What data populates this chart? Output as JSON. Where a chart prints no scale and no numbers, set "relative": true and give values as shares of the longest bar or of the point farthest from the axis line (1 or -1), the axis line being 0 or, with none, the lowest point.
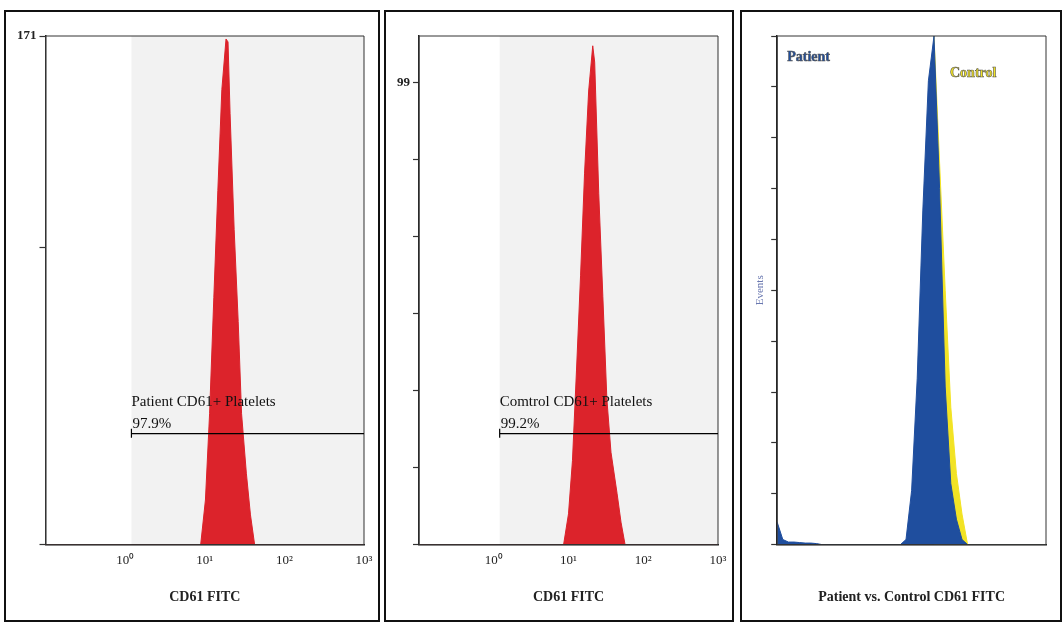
{
  "chart_data": [
    {
      "type": "area",
      "xlabel": "CD61 FITC",
      "log": "x",
      "xlim": [
        0.1,
        1000
      ],
      "xticks": [
        {
          "value": 1,
          "label": "10⁰"
        },
        {
          "value": 10,
          "label": "10¹"
        },
        {
          "value": 100,
          "label": "10²"
        },
        {
          "value": 1000,
          "label": "10³"
        }
      ],
      "ylim": [
        0,
        171
      ],
      "yticks": [
        {
          "value": 0,
          "label": null
        },
        {
          "value": 100,
          "label": null
        },
        171
      ],
      "x": [
        0.1,
        8.89,
        10.2,
        11.5,
        13.0,
        14.6,
        16.4,
        18.5,
        19.6,
        20.8,
        23.4,
        26.3,
        29.0,
        33.3,
        37.5,
        42.3,
        1000
      ],
      "series": [
        {
          "color": "#e8252e",
          "values": [
            0,
            0,
            15,
            44,
            83,
            119,
            153,
            170,
            169,
            145,
            106,
            75,
            44,
            24,
            10,
            0,
            0
          ]
        }
      ],
      "bands": [
        {
          "axis": "x",
          "from": 1.2,
          "to": 1000,
          "label": "Patient CD61+ Platelets",
          "color": "#000000"
        }
      ],
      "annotations": [
        "97.9%"
      ]
    },
    {
      "type": "area",
      "xlabel": "CD61 FITC",
      "log": "x",
      "xlim": [
        0.1,
        1000
      ],
      "xticks": [
        {
          "value": 1,
          "label": "10⁰"
        },
        {
          "value": 10,
          "label": "10¹"
        },
        {
          "value": 100,
          "label": "10²"
        },
        {
          "value": 1000,
          "label": "10³"
        }
      ],
      "ylim": [
        0,
        109
      ],
      "yticks": [
        {
          "value": 0,
          "label": null
        },
        {
          "value": 16.5,
          "label": null
        },
        {
          "value": 33,
          "label": null
        },
        {
          "value": 49.5,
          "label": null
        },
        {
          "value": 66,
          "label": null
        },
        {
          "value": 82.5,
          "label": null
        },
        99
      ],
      "x": [
        0.1,
        8.6,
        10,
        11.3,
        12.8,
        14.5,
        16.4,
        18.6,
        21.1,
        22.4,
        25.4,
        28.8,
        32.6,
        37.0,
        44.6,
        50.4,
        57.1,
        1000
      ],
      "series": [
        {
          "color": "#e8252e",
          "values": [
            0,
            0,
            6.6,
            18,
            37.4,
            57.6,
            79.6,
            97.2,
            106.9,
            103.4,
            75.2,
            53.2,
            31.2,
            19.8,
            11,
            4.8,
            0,
            0
          ]
        }
      ],
      "bands": [
        {
          "axis": "x",
          "from": 1.2,
          "to": 1000,
          "label": "Comtrol CD61+ Platelets",
          "color": "#000000"
        }
      ],
      "annotations": [
        "99.2%"
      ]
    },
    {
      "type": "area",
      "relative": true,
      "xlabel": "Patient vs. Control CD61 FITC",
      "ylabel": "Events",
      "categories": [
        null,
        null,
        null,
        null,
        null,
        null,
        null,
        null,
        null,
        null,
        null,
        null,
        null,
        null,
        null,
        null,
        null,
        null,
        null,
        null,
        null,
        null,
        null,
        null,
        null,
        null,
        null,
        null,
        null,
        null,
        null,
        null,
        null,
        null,
        null,
        null,
        null,
        null,
        null,
        null,
        null,
        null,
        null,
        null,
        null,
        null,
        null,
        null,
        null
      ],
      "series": [
        {
          "name": "Patient",
          "color": "#1f4e9e",
          "values": [
            0.044,
            0.01,
            0.005,
            0.005,
            0.004,
            0.003,
            0.003,
            0.002,
            0,
            0,
            0,
            0,
            0,
            0,
            0,
            0,
            0,
            0,
            0,
            0,
            0,
            0,
            0,
            0.01,
            0.106,
            0.326,
            0.656,
            0.912,
            1.0,
            0.7,
            0.31,
            0.12,
            0.05,
            0.01,
            0,
            0,
            0,
            0,
            0,
            0,
            0,
            0,
            0,
            0,
            0,
            0,
            0,
            0,
            0
          ]
        },
        {
          "name": "Control",
          "color": "#f2e324",
          "values": [
            null,
            null,
            null,
            null,
            null,
            null,
            null,
            null,
            null,
            null,
            null,
            null,
            null,
            null,
            null,
            null,
            null,
            null,
            null,
            null,
            null,
            null,
            null,
            null,
            null,
            null,
            null,
            null,
            1.0,
            0.75,
            0.5,
            0.27,
            0.14,
            0.06,
            0,
            0,
            0,
            0,
            0,
            0,
            0,
            0,
            0,
            0,
            0,
            0,
            0,
            0,
            0
          ]
        }
      ]
    }
  ]
}
